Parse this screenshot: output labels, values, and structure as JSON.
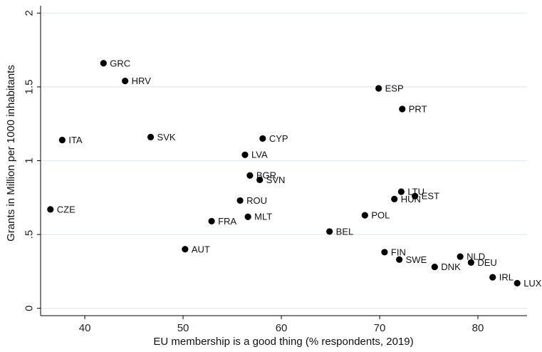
{
  "chart_data": {
    "type": "scatter",
    "title": "",
    "xlabel": "EU membership is a good thing (% respondents, 2019)",
    "ylabel": "Grants in Million per 1000 inhabitants",
    "xlim": [
      35.5,
      85
    ],
    "ylim": [
      -0.05,
      2.05
    ],
    "xticks": [
      "40",
      "50",
      "60",
      "70",
      "80"
    ],
    "yticks": [
      "0",
      ".5",
      "1",
      "1.5",
      "2"
    ],
    "grid": true,
    "marker_color": "#000000",
    "grid_color": "#e3ebef",
    "points": [
      {
        "label": "GRC",
        "x": 41.9,
        "y": 1.66
      },
      {
        "label": "HRV",
        "x": 44.1,
        "y": 1.54
      },
      {
        "label": "ITA",
        "x": 37.7,
        "y": 1.14
      },
      {
        "label": "SVK",
        "x": 46.7,
        "y": 1.16
      },
      {
        "label": "CZE",
        "x": 36.5,
        "y": 0.67
      },
      {
        "label": "AUT",
        "x": 50.2,
        "y": 0.4
      },
      {
        "label": "FRA",
        "x": 52.9,
        "y": 0.59
      },
      {
        "label": "CYP",
        "x": 58.1,
        "y": 1.15
      },
      {
        "label": "LVA",
        "x": 56.3,
        "y": 1.04
      },
      {
        "label": "BGR",
        "x": 56.8,
        "y": 0.9
      },
      {
        "label": "SVN",
        "x": 57.8,
        "y": 0.87
      },
      {
        "label": "ROU",
        "x": 55.8,
        "y": 0.73
      },
      {
        "label": "MLT",
        "x": 56.6,
        "y": 0.62
      },
      {
        "label": "BEL",
        "x": 64.9,
        "y": 0.52
      },
      {
        "label": "POL",
        "x": 68.5,
        "y": 0.63
      },
      {
        "label": "ESP",
        "x": 69.9,
        "y": 1.49
      },
      {
        "label": "PRT",
        "x": 72.3,
        "y": 1.35
      },
      {
        "label": "LTU",
        "x": 72.2,
        "y": 0.79
      },
      {
        "label": "EST",
        "x": 73.6,
        "y": 0.76
      },
      {
        "label": "HUN",
        "x": 71.5,
        "y": 0.74
      },
      {
        "label": "FIN",
        "x": 70.5,
        "y": 0.38
      },
      {
        "label": "SWE",
        "x": 72.0,
        "y": 0.33
      },
      {
        "label": "DNK",
        "x": 75.6,
        "y": 0.28
      },
      {
        "label": "NLD",
        "x": 78.2,
        "y": 0.35
      },
      {
        "label": "DEU",
        "x": 79.3,
        "y": 0.31
      },
      {
        "label": "IRL",
        "x": 81.5,
        "y": 0.21
      },
      {
        "label": "LUX",
        "x": 84.0,
        "y": 0.17
      }
    ]
  }
}
